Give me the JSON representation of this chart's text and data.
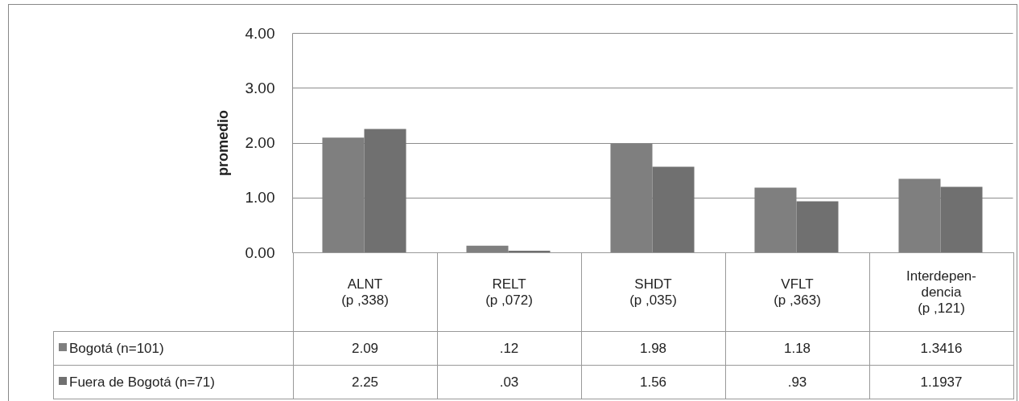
{
  "chart_data": {
    "type": "bar",
    "ylabel": "promedio",
    "categories": [
      "ALNT\n(p ,338)",
      "RELT\n(p ,072)",
      "SHDT\n(p ,035)",
      "VFLT\n(p ,363)",
      "Interdepen-\ndencia\n(p ,121)"
    ],
    "series": [
      {
        "name": "Bogotá (n=101)",
        "color": "#7f7f7f",
        "values": [
          2.09,
          0.12,
          1.98,
          1.18,
          1.3416
        ],
        "value_labels": [
          "2.09",
          ".12",
          "1.98",
          "1.18",
          "1.3416"
        ]
      },
      {
        "name": "Fuera de Bogotá (n=71)",
        "color": "#707070",
        "values": [
          2.25,
          0.03,
          1.56,
          0.93,
          1.1937
        ],
        "value_labels": [
          "2.25",
          ".03",
          "1.56",
          ".93",
          "1.1937"
        ]
      }
    ],
    "ylim": [
      0,
      4
    ],
    "yticks": [
      {
        "value": 0,
        "label": "0.00"
      },
      {
        "value": 1,
        "label": "1.00"
      },
      {
        "value": 2,
        "label": "2.00"
      },
      {
        "value": 3,
        "label": "3.00"
      },
      {
        "value": 4,
        "label": "4.00"
      }
    ],
    "grid": true,
    "legend": "bottom"
  }
}
